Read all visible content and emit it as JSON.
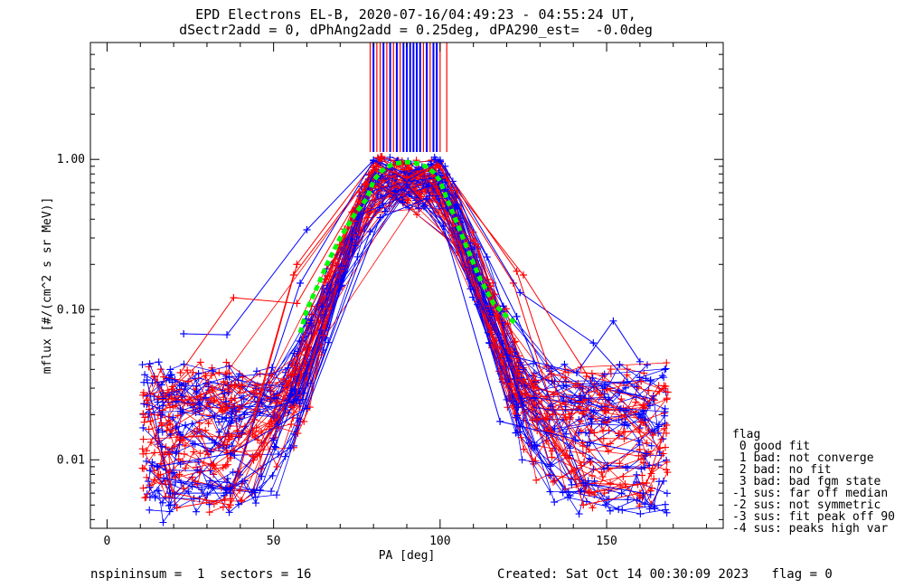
{
  "title_line1": "EPD Electrons EL-B, 2020-07-16/04:49:23 - 04:55:24 UT,",
  "title_line2": "dSectr2add = 0, dPhAng2add = 0.25deg, dPA290_est=  -0.0deg",
  "footer": {
    "left": "nspininsum =  1  sectors = 16",
    "right": "Created: Sat Oct 14 00:30:09 2023   flag = 0"
  },
  "legend": {
    "title": "flag",
    "items": [
      " 0 good fit",
      " 1 bad: not converge",
      " 2 bad: no fit",
      " 3 bad: bad fgm state",
      "-1 sus: far off median",
      "-2 sus: not symmetric",
      "-3 sus: fit peak off 90",
      "-4 sus: peaks high var"
    ]
  },
  "chart_data": {
    "type": "line",
    "title": "EPD Electrons EL-B, 2020-07-16/04:49:23 - 04:55:24 UT, dSectr2add = 0, dPhAng2add = 0.25deg, dPA290_est=  -0.0deg",
    "xlabel": "PA [deg]",
    "ylabel": "mflux [#/(cm^2 s sr MeV)]",
    "xlim": [
      -5,
      185
    ],
    "ylim": [
      0.0035,
      6.0
    ],
    "yscale": "log",
    "xticks": [
      0,
      50,
      100,
      150
    ],
    "xtick_labels": [
      "0",
      "50",
      "100",
      "150"
    ],
    "yticks": [
      0.01,
      0.1,
      1.0
    ],
    "ytick_labels": [
      "0.01",
      "0.10",
      "1.00"
    ],
    "colors": {
      "red": "#ff0000",
      "blue": "#0000ff",
      "fit": "#00ff00",
      "axes": "#000000"
    },
    "pa_samples": [
      12,
      15,
      18,
      20,
      23,
      27,
      31,
      35,
      37,
      40,
      45,
      50,
      55,
      57,
      60,
      65,
      70,
      75,
      79,
      82,
      86,
      90,
      94,
      98,
      101,
      105,
      110,
      115,
      119,
      122,
      124,
      128,
      133,
      138,
      142,
      145,
      150,
      155,
      160,
      163,
      167
    ],
    "series": [
      {
        "color": "red",
        "points": [
          [
            12,
            0.025
          ],
          [
            20,
            0.006
          ],
          [
            37,
            0.005
          ],
          [
            57,
            0.2
          ],
          [
            80,
            0.95
          ],
          [
            90,
            0.75
          ],
          [
            100,
            0.9
          ],
          [
            122,
            0.15
          ],
          [
            143,
            0.005
          ],
          [
            160,
            0.006
          ],
          [
            167,
            0.011
          ]
        ]
      },
      {
        "color": "red",
        "points": [
          [
            13,
            0.018
          ],
          [
            21,
            0.0048
          ],
          [
            37,
            0.0055
          ],
          [
            56,
            0.17
          ],
          [
            80,
            0.85
          ],
          [
            90,
            0.7
          ],
          [
            100,
            0.95
          ],
          [
            123,
            0.18
          ],
          [
            145,
            0.006
          ],
          [
            162,
            0.007
          ],
          [
            168,
            0.017
          ]
        ]
      },
      {
        "color": "blue",
        "points": [
          [
            12,
            0.034
          ],
          [
            19,
            0.006
          ],
          [
            37,
            0.006
          ],
          [
            58,
            0.15
          ],
          [
            80,
            0.98
          ],
          [
            90,
            0.72
          ],
          [
            100,
            0.97
          ],
          [
            123,
            0.09
          ],
          [
            143,
            0.007
          ],
          [
            161,
            0.006
          ]
        ]
      },
      {
        "color": "blue",
        "points": [
          [
            23,
            0.069
          ],
          [
            36,
            0.068
          ],
          [
            60,
            0.34
          ],
          [
            80,
            0.99
          ],
          [
            90,
            0.8
          ],
          [
            100,
            0.99
          ],
          [
            124,
            0.13
          ],
          [
            146,
            0.06
          ],
          [
            163,
            0.023
          ]
        ]
      },
      {
        "color": "blue",
        "points": [
          [
            17,
            0.0075
          ],
          [
            37,
            0.0065
          ],
          [
            55,
            0.012
          ],
          [
            79,
            0.33
          ],
          [
            90,
            0.68
          ],
          [
            101,
            0.36
          ],
          [
            118,
            0.018
          ],
          [
            145,
            0.013
          ],
          [
            162,
            0.011
          ]
        ]
      },
      {
        "color": "red",
        "points": [
          [
            22,
            0.038
          ],
          [
            38,
            0.12
          ],
          [
            57,
            0.11
          ],
          [
            81,
            0.9
          ],
          [
            90,
            0.76
          ],
          [
            99,
            0.92
          ],
          [
            125,
            0.17
          ],
          [
            148,
            0.027
          ],
          [
            166,
            0.012
          ]
        ]
      },
      {
        "color": "blue",
        "points": [
          [
            15,
            0.009
          ],
          [
            37,
            0.011
          ],
          [
            60,
            0.022
          ],
          [
            82,
            0.41
          ],
          [
            96,
            0.55
          ],
          [
            120,
            0.05
          ],
          [
            141,
            0.038
          ],
          [
            152,
            0.084
          ],
          [
            160,
            0.045
          ]
        ]
      }
    ],
    "fit": {
      "name": "",
      "style": "dashed",
      "points": [
        [
          78,
          0.55
        ],
        [
          80,
          0.72
        ],
        [
          82,
          0.82
        ],
        [
          84,
          0.89
        ],
        [
          86,
          0.93
        ],
        [
          88,
          0.95
        ],
        [
          90,
          0.96
        ],
        [
          92,
          0.95
        ],
        [
          94,
          0.93
        ],
        [
          96,
          0.89
        ],
        [
          98,
          0.82
        ],
        [
          100,
          0.72
        ],
        [
          102,
          0.55
        ],
        [
          105,
          0.38
        ],
        [
          108,
          0.26
        ],
        [
          112,
          0.16
        ],
        [
          116,
          0.11
        ],
        [
          120,
          0.09
        ],
        [
          123,
          0.08
        ]
      ],
      "left_points": [
        [
          58,
          0.07
        ],
        [
          60,
          0.1
        ],
        [
          63,
          0.14
        ],
        [
          66,
          0.2
        ],
        [
          70,
          0.3
        ],
        [
          74,
          0.42
        ],
        [
          78,
          0.55
        ]
      ]
    },
    "rays": {
      "red_pa": [
        79,
        81,
        82,
        84,
        86,
        88,
        95,
        97,
        100,
        102
      ],
      "blue_pa": [
        80,
        83,
        85,
        87,
        89,
        90,
        91,
        92,
        93,
        94,
        96,
        98,
        99
      ],
      "top_value": 6.0,
      "bottom_value": 1.12
    }
  }
}
